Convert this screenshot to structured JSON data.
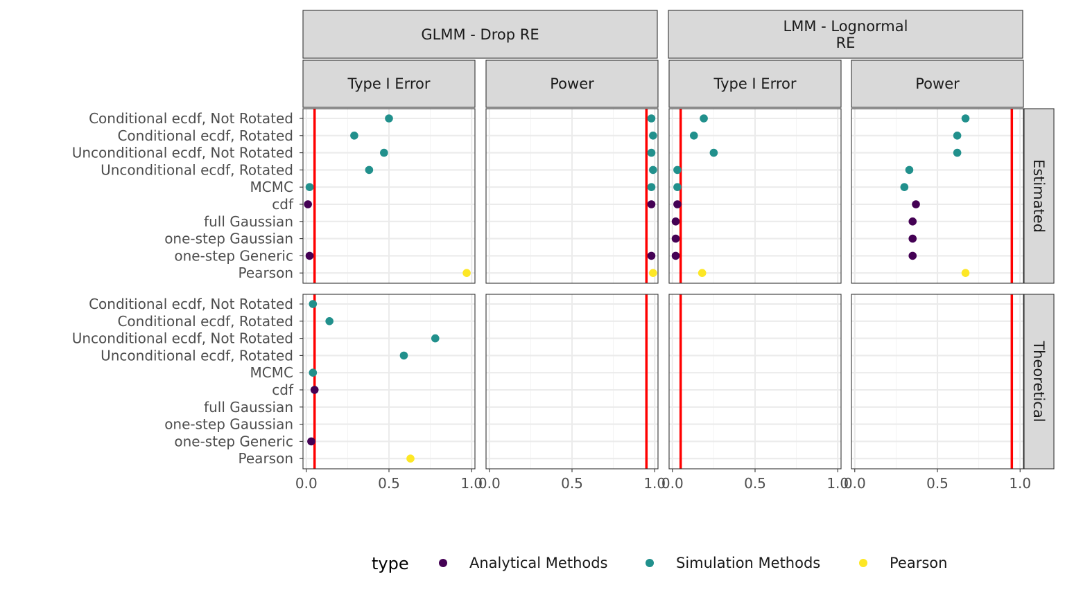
{
  "chart_data": {
    "type": "scatter",
    "facet_columns": [
      {
        "label": "GLMM - Drop RE",
        "subpanels": [
          "Type I Error",
          "Power"
        ]
      },
      {
        "label": "LMM - Lognormal\nRE",
        "subpanels": [
          "Type I Error",
          "Power"
        ]
      }
    ],
    "facet_rows": [
      "Estimated",
      "Theoretical"
    ],
    "methods": [
      "Conditional ecdf, Not Rotated",
      "Conditional ecdf, Rotated",
      "Unconditional ecdf, Not Rotated",
      "Unconditional ecdf, Rotated",
      "MCMC",
      "cdf",
      "full Gaussian",
      "one-step Gaussian",
      "one-step Generic",
      "Pearson"
    ],
    "x_ticks": [
      "0.0",
      "0.5",
      "1.0"
    ],
    "xlim": [
      -0.02,
      1.02
    ],
    "reference_lines": {
      "Type I Error": 0.05,
      "Power": 0.95
    },
    "legend": {
      "title": "type",
      "position": "bottom",
      "entries": [
        {
          "name": "Analytical Methods",
          "color": "#440154"
        },
        {
          "name": "Simulation Methods",
          "color": "#21908c"
        },
        {
          "name": "Pearson",
          "color": "#fde725"
        }
      ]
    },
    "series_methods": {
      "Analytical Methods": [
        "cdf",
        "full Gaussian",
        "one-step Gaussian",
        "one-step Generic"
      ],
      "Simulation Methods": [
        "Conditional ecdf, Not Rotated",
        "Conditional ecdf, Rotated",
        "Unconditional ecdf, Not Rotated",
        "Unconditional ecdf, Rotated",
        "MCMC"
      ],
      "Pearson": [
        "Pearson"
      ]
    },
    "panels": [
      {
        "model": "GLMM - Drop RE",
        "metric": "Type I Error",
        "row": "Estimated",
        "values": {
          "Conditional ecdf, Not Rotated": 0.5,
          "Conditional ecdf, Rotated": 0.29,
          "Unconditional ecdf, Not Rotated": 0.47,
          "Unconditional ecdf, Rotated": 0.38,
          "MCMC": 0.02,
          "cdf": 0.01,
          "one-step Generic": 0.02,
          "Pearson": 0.97
        }
      },
      {
        "model": "GLMM - Drop RE",
        "metric": "Power",
        "row": "Estimated",
        "values": {
          "Conditional ecdf, Not Rotated": 0.98,
          "Conditional ecdf, Rotated": 0.99,
          "Unconditional ecdf, Not Rotated": 0.98,
          "Unconditional ecdf, Rotated": 0.99,
          "MCMC": 0.98,
          "cdf": 0.98,
          "one-step Generic": 0.98,
          "Pearson": 0.99
        }
      },
      {
        "model": "LMM - Lognormal RE",
        "metric": "Type I Error",
        "row": "Estimated",
        "values": {
          "Conditional ecdf, Not Rotated": 0.19,
          "Conditional ecdf, Rotated": 0.13,
          "Unconditional ecdf, Not Rotated": 0.25,
          "Unconditional ecdf, Rotated": 0.03,
          "MCMC": 0.03,
          "cdf": 0.03,
          "full Gaussian": 0.02,
          "one-step Gaussian": 0.02,
          "one-step Generic": 0.02,
          "Pearson": 0.18
        }
      },
      {
        "model": "LMM - Lognormal RE",
        "metric": "Power",
        "row": "Estimated",
        "values": {
          "Conditional ecdf, Not Rotated": 0.67,
          "Conditional ecdf, Rotated": 0.62,
          "Unconditional ecdf, Not Rotated": 0.62,
          "Unconditional ecdf, Rotated": 0.33,
          "MCMC": 0.3,
          "cdf": 0.37,
          "full Gaussian": 0.35,
          "one-step Gaussian": 0.35,
          "one-step Generic": 0.35,
          "Pearson": 0.67
        }
      },
      {
        "model": "GLMM - Drop RE",
        "metric": "Type I Error",
        "row": "Theoretical",
        "values": {
          "Conditional ecdf, Not Rotated": 0.04,
          "Conditional ecdf, Rotated": 0.14,
          "Unconditional ecdf, Not Rotated": 0.78,
          "Unconditional ecdf, Rotated": 0.59,
          "MCMC": 0.04,
          "cdf": 0.05,
          "one-step Generic": 0.03,
          "Pearson": 0.63
        }
      },
      {
        "model": "GLMM - Drop RE",
        "metric": "Power",
        "row": "Theoretical",
        "values": {}
      },
      {
        "model": "LMM - Lognormal RE",
        "metric": "Type I Error",
        "row": "Theoretical",
        "values": {}
      },
      {
        "model": "LMM - Lognormal RE",
        "metric": "Power",
        "row": "Theoretical",
        "values": {}
      }
    ]
  }
}
